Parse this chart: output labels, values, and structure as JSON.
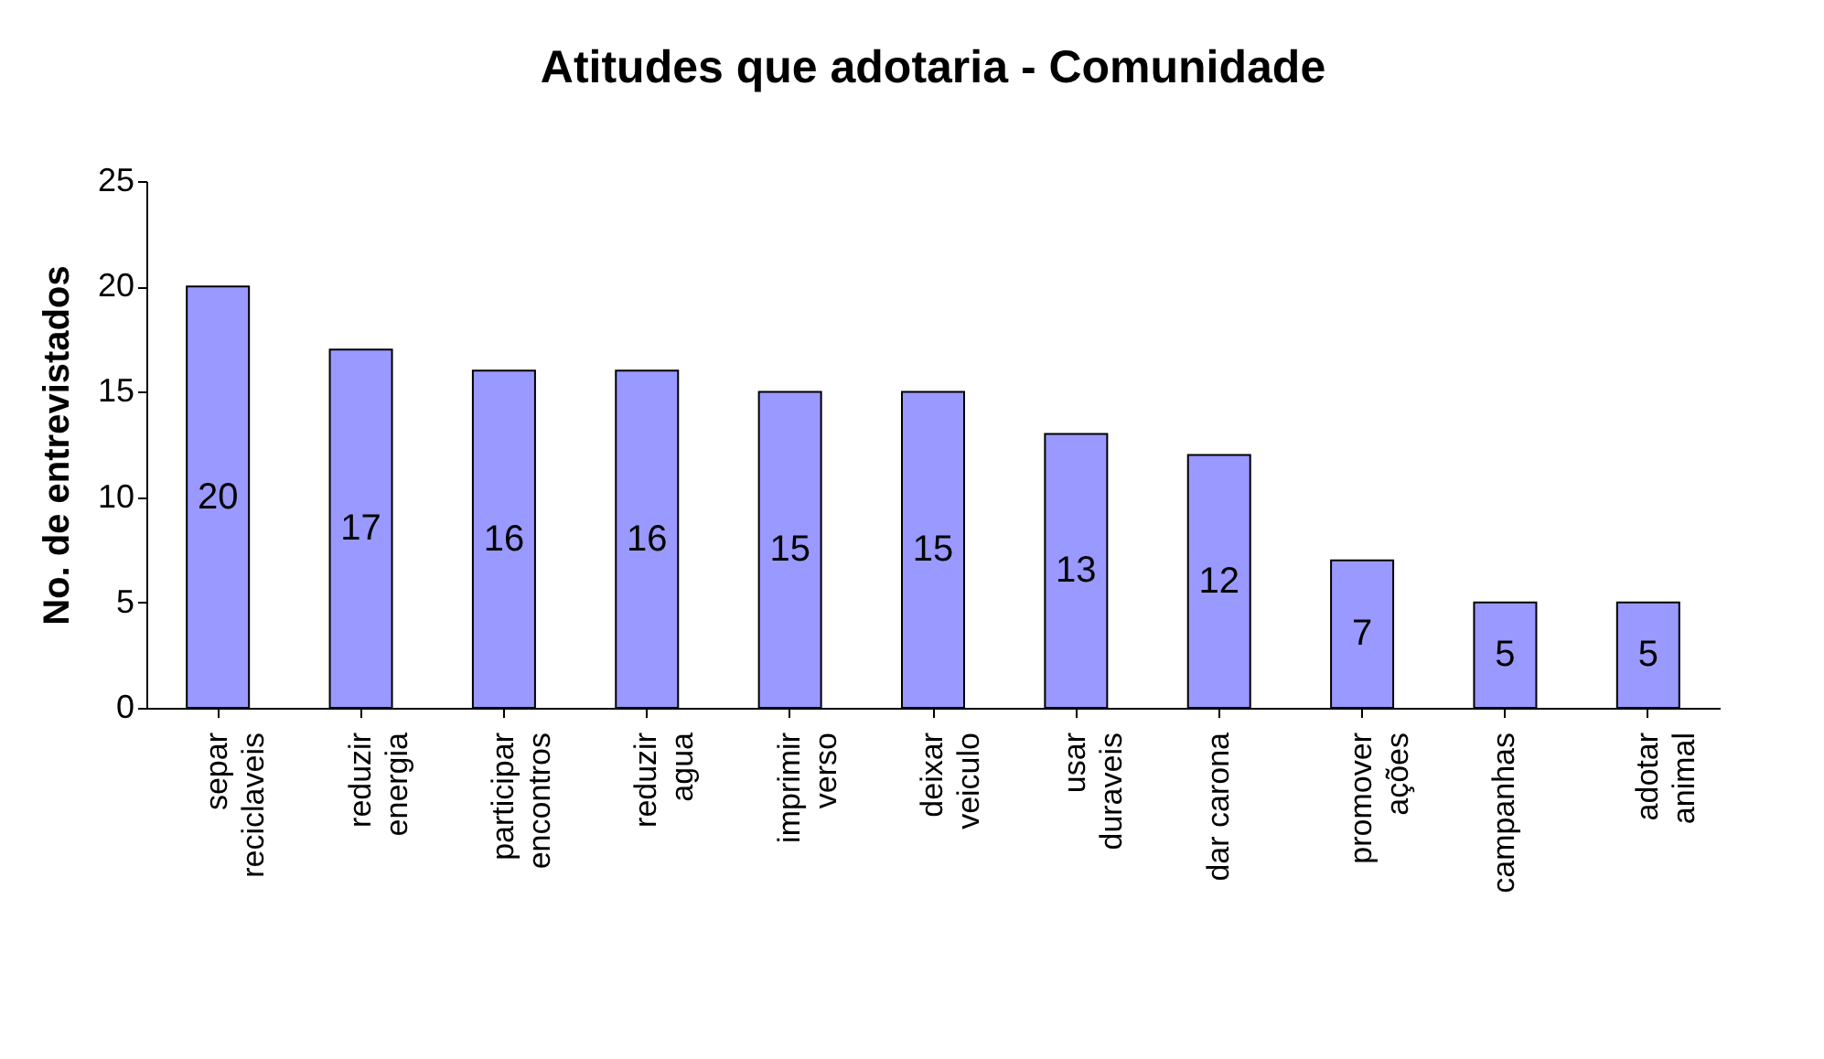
{
  "chart_data": {
    "type": "bar",
    "title": "Atitudes que  adotaria - Comunidade",
    "ylabel": "No. de entrevistados",
    "categories": [
      "separ\nreciclaveis",
      "reduzir\nenergia",
      "participar\nencontros",
      "reduzir\nagua",
      "imprimir\nverso",
      "deixar\nveiculo",
      "usar\nduraveis",
      "dar carona",
      "promover\nações",
      "campanhas",
      "adotar\nanimal"
    ],
    "values": [
      20,
      17,
      16,
      16,
      15,
      15,
      13,
      12,
      7,
      5,
      5
    ],
    "color": "#9999ff",
    "ylim": [
      0,
      25
    ],
    "yticks": [
      0,
      5,
      10,
      15,
      20,
      25
    ],
    "grid": false,
    "data_labels": true
  }
}
